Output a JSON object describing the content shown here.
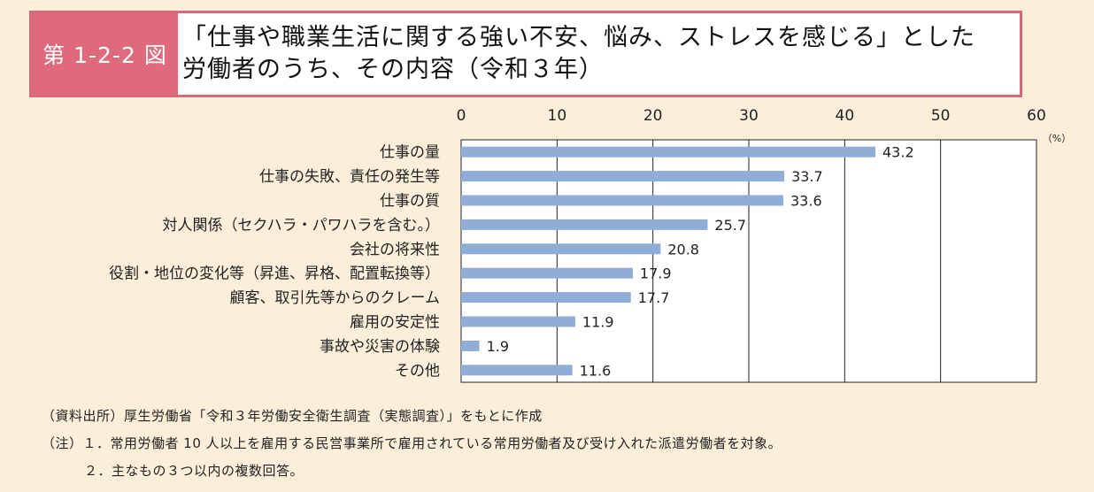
{
  "header": {
    "figure_label": "第 1-2-2 図",
    "title_line1": "「仕事や職業生活に関する強い不安、悩み、ストレスを感じる」とした",
    "title_line2": "労働者のうち、その内容（令和３年）"
  },
  "colors": {
    "bar": "#8fadd6",
    "header_accent": "#de6a7c",
    "background": "#fcefd9"
  },
  "chart_data": {
    "type": "bar",
    "orientation": "horizontal",
    "categories": [
      "仕事の量",
      "仕事の失敗、責任の発生等",
      "仕事の質",
      "対人関係（セクハラ・パワハラを含む。）",
      "会社の将来性",
      "役割・地位の変化等（昇進、昇格、配置転換等）",
      "顧客、取引先等からのクレーム",
      "雇用の安定性",
      "事故や災害の体験",
      "その他"
    ],
    "values": [
      43.2,
      33.7,
      33.6,
      25.7,
      20.8,
      17.9,
      17.7,
      11.9,
      1.9,
      11.6
    ],
    "value_labels": [
      "43.2",
      "33.7",
      "33.6",
      "25.7",
      "20.8",
      "17.9",
      "17.7",
      "11.9",
      "1.9",
      "11.6"
    ],
    "xlim": [
      0,
      60
    ],
    "xticks": [
      0,
      10,
      20,
      30,
      40,
      50,
      60
    ],
    "unit_label": "（%）",
    "grid": true,
    "axis_position": "top"
  },
  "notes": {
    "source": "（資料出所）厚生労働省「令和３年労働安全衛生調査（実態調査）」をもとに作成",
    "note1": "（注）１．常用労働者 10 人以上を雇用する民営事業所で雇用されている常用労働者及び受け入れた派遣労働者を対象。",
    "note2": "２．主なもの３つ以内の複数回答。"
  }
}
